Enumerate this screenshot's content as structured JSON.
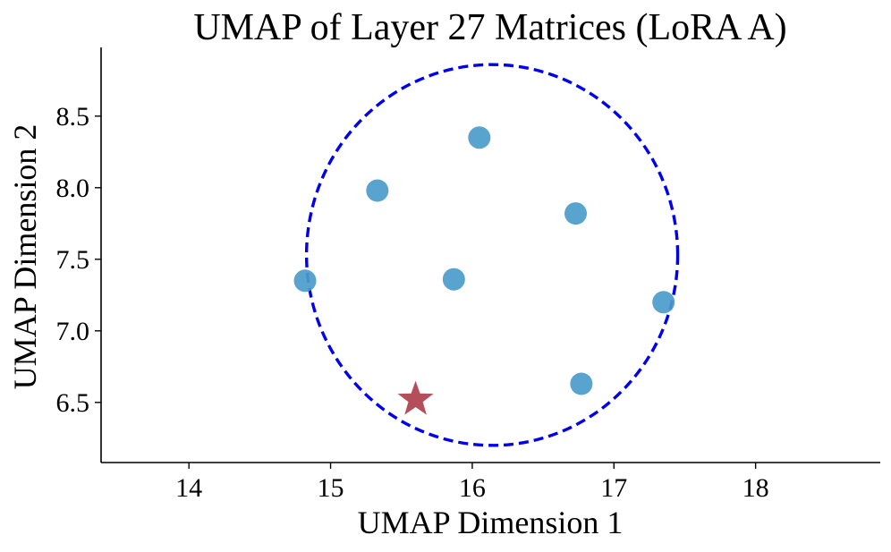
{
  "chart_data": {
    "type": "scatter",
    "title": "UMAP of Layer 27 Matrices (LoRA A)",
    "xlabel": "UMAP Dimension 1",
    "ylabel": "UMAP Dimension 2",
    "xlim": [
      13.38,
      18.88
    ],
    "ylim": [
      6.08,
      8.98
    ],
    "xticks": [
      "14",
      "15",
      "16",
      "17",
      "18"
    ],
    "xtick_values": [
      14,
      15,
      16,
      17,
      18
    ],
    "yticks": [
      "6.5",
      "7.0",
      "7.5",
      "8.0",
      "8.5"
    ],
    "ytick_values": [
      6.5,
      7.0,
      7.5,
      8.0,
      8.5
    ],
    "grid": false,
    "series": [
      {
        "marker": "circle",
        "color": "#4b9bcb",
        "points": [
          {
            "x": 14.82,
            "y": 7.35
          },
          {
            "x": 15.33,
            "y": 7.98
          },
          {
            "x": 15.87,
            "y": 7.36
          },
          {
            "x": 16.05,
            "y": 8.35
          },
          {
            "x": 16.73,
            "y": 7.82
          },
          {
            "x": 17.35,
            "y": 7.2
          },
          {
            "x": 16.77,
            "y": 6.63
          }
        ]
      },
      {
        "marker": "star",
        "color": "#b04452",
        "points": [
          {
            "x": 15.6,
            "y": 6.52
          }
        ]
      }
    ],
    "annotations": [
      {
        "type": "dashed-circle",
        "color": "#0000ee",
        "center": {
          "x": 16.14,
          "y": 7.53
        },
        "x_radius": 1.31,
        "y_radius": 1.33
      }
    ]
  }
}
